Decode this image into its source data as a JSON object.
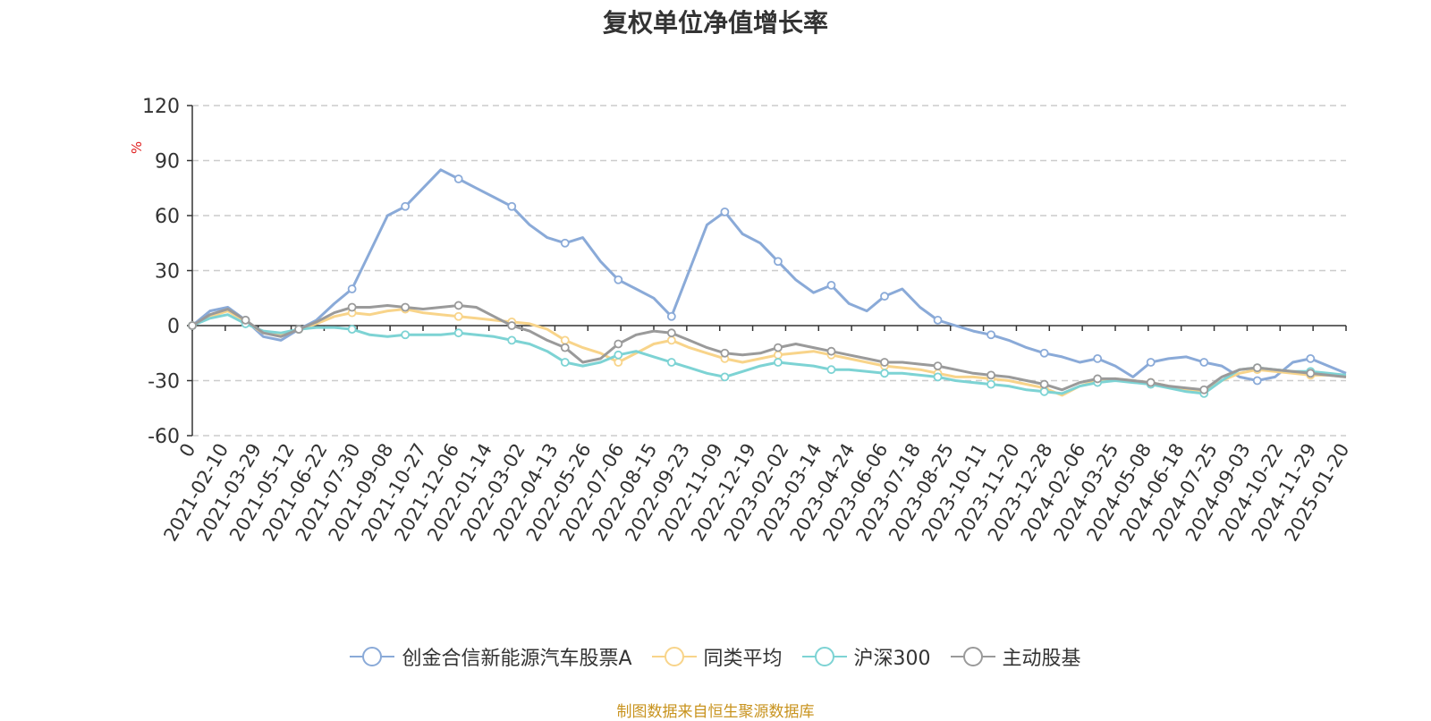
{
  "title": "复权单位净值增长率",
  "source": "制图数据来自恒生聚源数据库",
  "chart_data": {
    "type": "line",
    "title": "复权单位净值增长率",
    "ylabel": "%",
    "ylim": [
      -60,
      120
    ],
    "yticks": [
      -60,
      -30,
      0,
      30,
      60,
      90,
      120
    ],
    "grid": true,
    "legend_position": "bottom",
    "x_tick_labels": [
      "0",
      "2021-02-10",
      "2021-03-29",
      "2021-05-12",
      "2021-06-22",
      "2021-07-30",
      "2021-09-08",
      "2021-10-27",
      "2021-12-06",
      "2022-01-14",
      "2022-03-02",
      "2022-04-13",
      "2022-05-26",
      "2022-07-06",
      "2022-08-15",
      "2022-09-23",
      "2022-11-09",
      "2022-12-19",
      "2023-02-02",
      "2023-03-14",
      "2023-04-24",
      "2023-06-06",
      "2023-07-18",
      "2023-08-25",
      "2023-10-11",
      "2023-11-20",
      "2023-12-28",
      "2024-02-06",
      "2024-03-25",
      "2024-05-08",
      "2024-06-18",
      "2024-07-25",
      "2024-09-03",
      "2024-10-22",
      "2024-11-29",
      "2025-01-20"
    ],
    "series": [
      {
        "name": "创金合信新能源汽车股票A",
        "color": "#8aaad8",
        "values": [
          0,
          8,
          10,
          3,
          -6,
          -8,
          -2,
          3,
          12,
          20,
          40,
          60,
          65,
          75,
          85,
          80,
          75,
          70,
          65,
          55,
          48,
          45,
          48,
          35,
          25,
          20,
          15,
          5,
          30,
          55,
          62,
          50,
          45,
          35,
          25,
          18,
          22,
          12,
          8,
          16,
          20,
          10,
          3,
          0,
          -3,
          -5,
          -8,
          -12,
          -15,
          -17,
          -20,
          -18,
          -22,
          -28,
          -20,
          -18,
          -17,
          -20,
          -22,
          -28,
          -30,
          -28,
          -20,
          -18,
          -22,
          -26
        ]
      },
      {
        "name": "同类平均",
        "color": "#f8d48a",
        "values": [
          0,
          5,
          8,
          2,
          -4,
          -5,
          -2,
          1,
          5,
          7,
          6,
          8,
          9,
          7,
          6,
          5,
          4,
          3,
          2,
          1,
          -2,
          -8,
          -12,
          -15,
          -20,
          -15,
          -10,
          -8,
          -12,
          -15,
          -18,
          -20,
          -18,
          -16,
          -15,
          -14,
          -16,
          -18,
          -20,
          -22,
          -23,
          -24,
          -26,
          -28,
          -28,
          -29,
          -30,
          -32,
          -34,
          -38,
          -33,
          -30,
          -29,
          -30,
          -31,
          -33,
          -35,
          -36,
          -30,
          -26,
          -24,
          -25,
          -26,
          -27,
          -27,
          -28
        ]
      },
      {
        "name": "沪深300",
        "color": "#7dd3d4",
        "values": [
          0,
          4,
          6,
          1,
          -3,
          -4,
          -2,
          -1,
          -1,
          -2,
          -5,
          -6,
          -5,
          -5,
          -5,
          -4,
          -5,
          -6,
          -8,
          -10,
          -14,
          -20,
          -22,
          -20,
          -16,
          -14,
          -17,
          -20,
          -23,
          -26,
          -28,
          -25,
          -22,
          -20,
          -21,
          -22,
          -24,
          -24,
          -25,
          -26,
          -26,
          -27,
          -28,
          -30,
          -31,
          -32,
          -33,
          -35,
          -36,
          -37,
          -33,
          -31,
          -30,
          -31,
          -32,
          -34,
          -36,
          -37,
          -30,
          -24,
          -23,
          -24,
          -25,
          -25,
          -26,
          -27
        ]
      },
      {
        "name": "主动股基",
        "color": "#9a9a9a",
        "values": [
          0,
          6,
          9,
          3,
          -4,
          -6,
          -2,
          2,
          7,
          10,
          10,
          11,
          10,
          9,
          10,
          11,
          10,
          5,
          0,
          -3,
          -8,
          -12,
          -20,
          -18,
          -10,
          -5,
          -3,
          -4,
          -8,
          -12,
          -15,
          -16,
          -15,
          -12,
          -10,
          -12,
          -14,
          -16,
          -18,
          -20,
          -20,
          -21,
          -22,
          -24,
          -26,
          -27,
          -28,
          -30,
          -32,
          -35,
          -31,
          -29,
          -29,
          -30,
          -31,
          -33,
          -34,
          -35,
          -28,
          -24,
          -23,
          -24,
          -25,
          -26,
          -27,
          -28
        ]
      }
    ]
  }
}
